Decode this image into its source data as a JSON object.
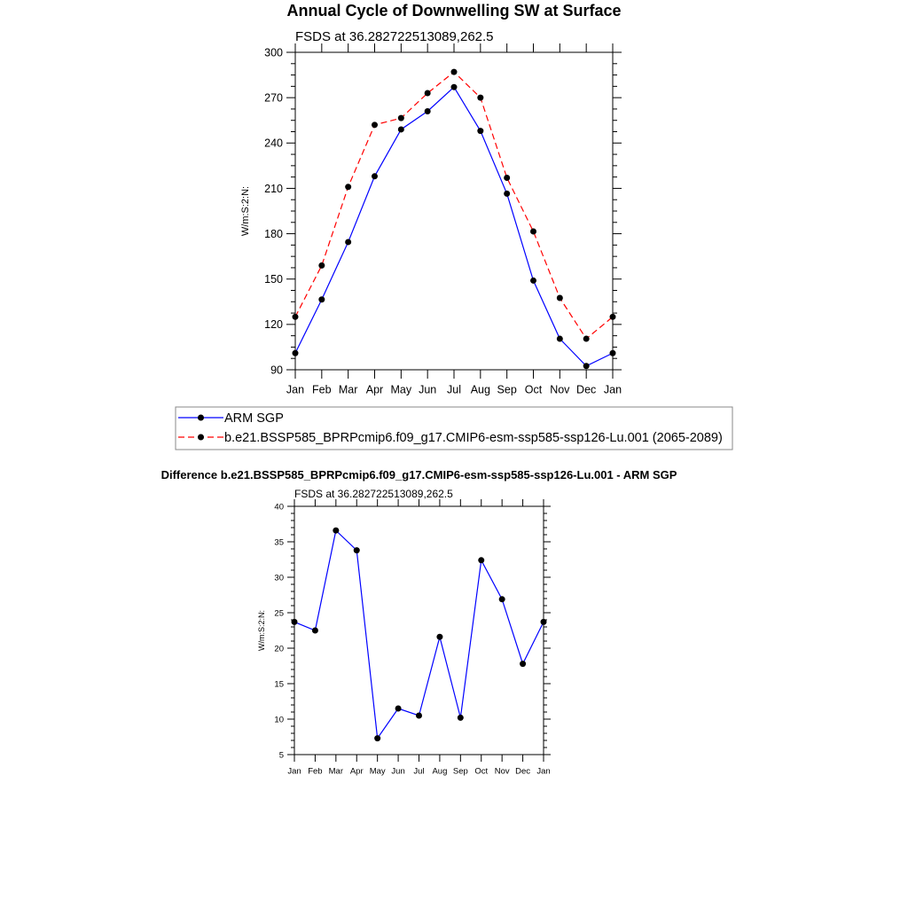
{
  "chart_data": [
    {
      "type": "line",
      "title": "Annual Cycle of Downwelling SW at Surface",
      "subtitle": "FSDS at 36.282722513089,262.5",
      "ylabel": "W/m:S:2:N:",
      "xlabel": "",
      "categories": [
        "Jan",
        "Feb",
        "Mar",
        "Apr",
        "May",
        "Jun",
        "Jul",
        "Aug",
        "Sep",
        "Oct",
        "Nov",
        "Dec",
        "Jan"
      ],
      "ylim": [
        90,
        300
      ],
      "yticks": [
        90,
        120,
        150,
        180,
        210,
        240,
        270,
        300
      ],
      "grid": false,
      "legend": "bottom",
      "series": [
        {
          "name": "ARM SGP",
          "color": "#0000ff",
          "dash": "solid",
          "values": [
            101,
            136.5,
            174.5,
            218,
            249,
            261,
            277,
            248,
            206.5,
            149,
            110.5,
            92.5,
            101
          ]
        },
        {
          "name": "b.e21.BSSP585_BPRPcmip6.f09_g17.CMIP6-esm-ssp585-ssp126-Lu.001 (2065-2089)",
          "color": "#ff0000",
          "dash": "dashed",
          "values": [
            125,
            159,
            211,
            252,
            256.5,
            273,
            287,
            270,
            217,
            181.5,
            137.5,
            110.5,
            125
          ]
        }
      ]
    },
    {
      "type": "line",
      "title": "Difference b.e21.BSSP585_BPRPcmip6.f09_g17.CMIP6-esm-ssp585-ssp126-Lu.001 - ARM SGP",
      "subtitle": "FSDS at 36.282722513089,262.5",
      "ylabel": "W/m:S:2:N:",
      "xlabel": "",
      "categories": [
        "Jan",
        "Feb",
        "Mar",
        "Apr",
        "May",
        "Jun",
        "Jul",
        "Aug",
        "Sep",
        "Oct",
        "Nov",
        "Dec",
        "Jan"
      ],
      "ylim": [
        5,
        40
      ],
      "yticks": [
        5,
        10,
        15,
        20,
        25,
        30,
        35,
        40
      ],
      "grid": false,
      "series": [
        {
          "color": "#0000ff",
          "dash": "solid",
          "values": [
            23.7,
            22.5,
            36.6,
            33.8,
            7.3,
            11.5,
            10.5,
            21.6,
            10.2,
            32.4,
            26.9,
            17.8,
            23.7
          ]
        }
      ]
    }
  ]
}
